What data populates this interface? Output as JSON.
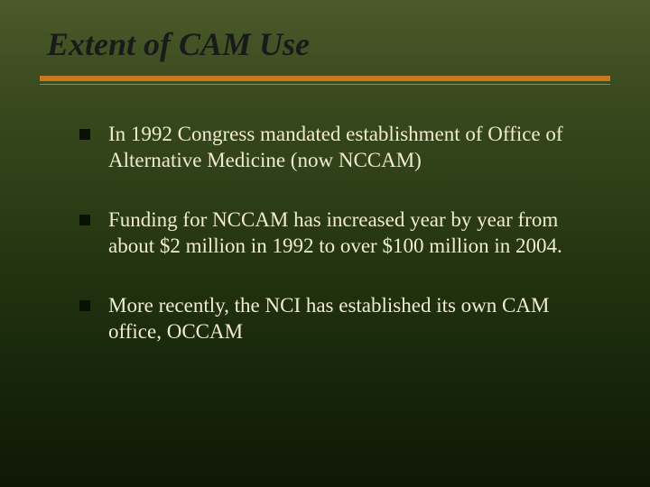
{
  "slide": {
    "title": "Extent of CAM Use",
    "title_color": "#1a1a1a",
    "title_fontsize": 36,
    "rule_color": "#c87820",
    "background_gradient": [
      "#4a5a2a",
      "#3a4a1e",
      "#2a3a14",
      "#1a2a0c",
      "#0f1806"
    ],
    "bullet_color": "#f0ead0",
    "bullet_marker_color": "#0a1004",
    "bullet_fontsize": 23,
    "bullets": [
      "In 1992 Congress mandated establishment of Office of Alternative Medicine (now NCCAM)",
      "Funding for NCCAM has increased year by year from about $2 million in 1992 to over $100 million in 2004.",
      "More recently, the NCI has established its own CAM office, OCCAM"
    ]
  }
}
